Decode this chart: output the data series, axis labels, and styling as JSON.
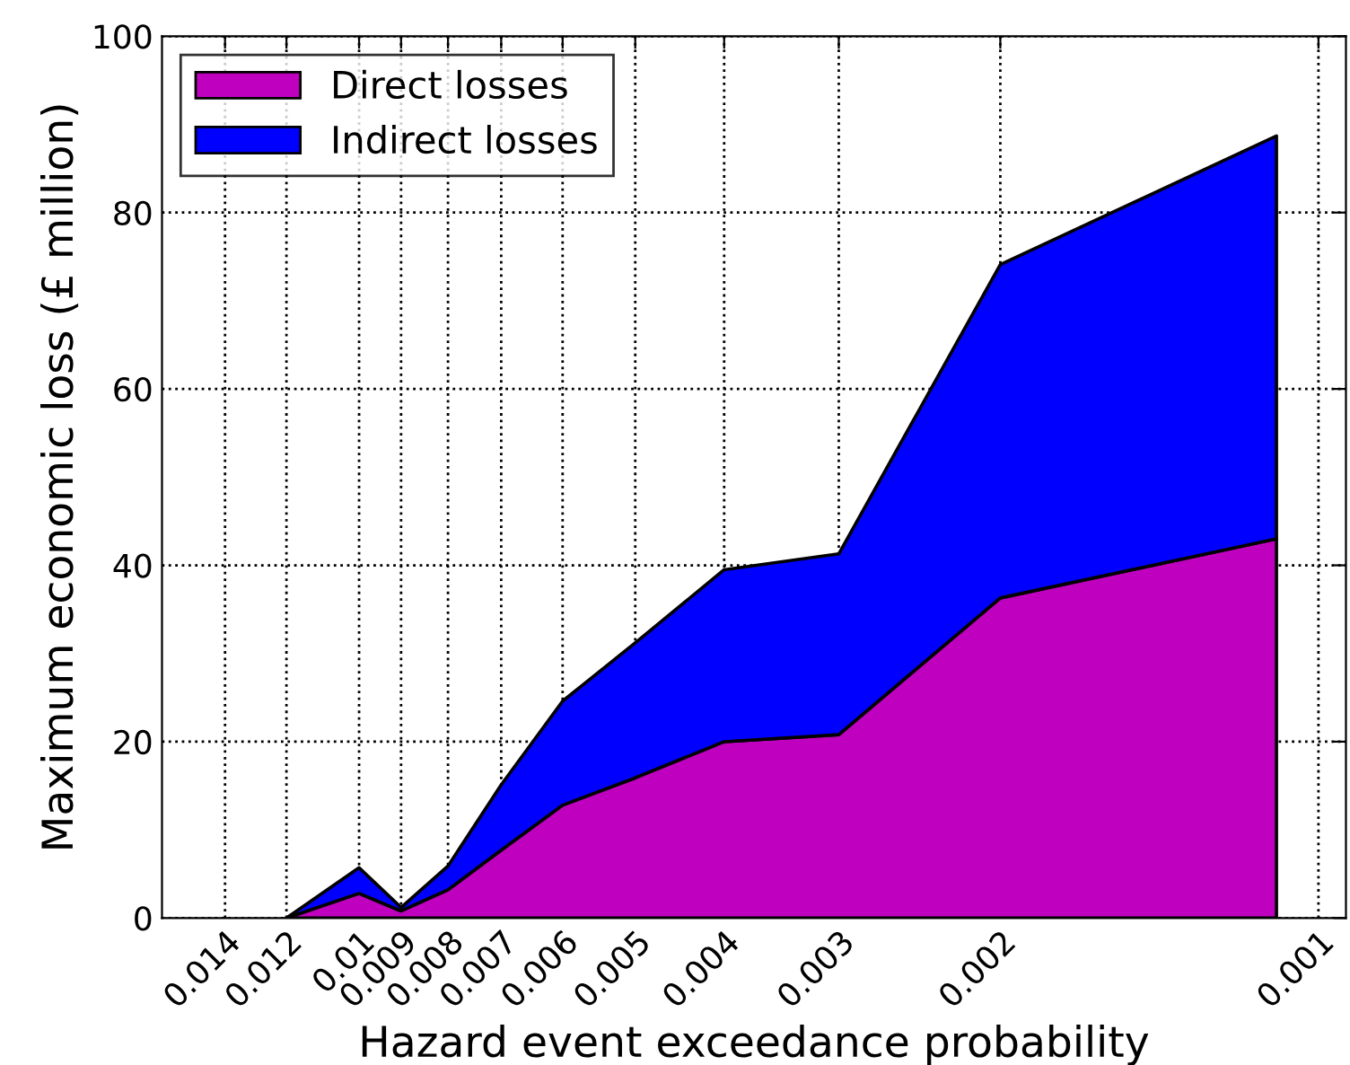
{
  "chart_data": {
    "type": "area",
    "stacked": true,
    "xlabel": "Hazard event exceedance probability",
    "ylabel": "Maximum economic loss (£ million)",
    "x": [
      0.012,
      0.01,
      0.009,
      0.008,
      0.007,
      0.006,
      0.005,
      0.004,
      0.003,
      0.002,
      0.001
    ],
    "series": [
      {
        "name": "Direct losses",
        "color": "#bf00bf",
        "values": [
          0,
          2.8,
          0.8,
          3.2,
          7.7,
          12.8,
          15.9,
          20.0,
          20.8,
          36.3,
          43.0
        ]
      },
      {
        "name": "Indirect losses",
        "color": "#0000ff",
        "values": [
          0,
          2.9,
          0.4,
          2.7,
          7.4,
          11.8,
          15.3,
          19.5,
          20.5,
          37.8,
          45.7
        ]
      }
    ],
    "log": "x",
    "xlim": [
      0.0164,
      0.00084
    ],
    "xticks": [
      0.014,
      0.012,
      0.01,
      0.009,
      0.008,
      0.007,
      0.006,
      0.005,
      0.004,
      0.003,
      0.002,
      {
        "value": 0.0009,
        "label": "0.001"
      }
    ],
    "ylim": [
      0,
      100
    ],
    "yticks": [
      0,
      20,
      40,
      60,
      80,
      100
    ],
    "grid": true,
    "legend": "top left"
  }
}
